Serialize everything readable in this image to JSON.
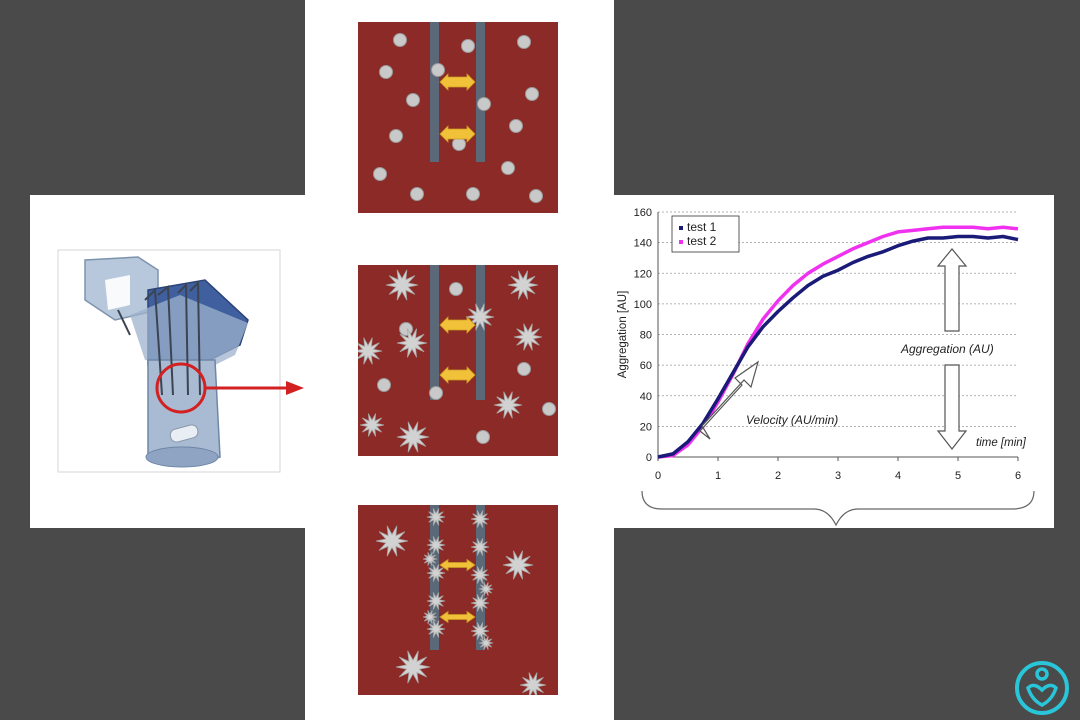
{
  "colors": {
    "background": "#4a4a4a",
    "panel": "#ffffff",
    "chamber": "#8b2a26",
    "electrode": "#5b6878",
    "arrow": "#f2c13a",
    "test1": "#1a1a78",
    "test2": "#f032f0",
    "logo": "#29c5d8"
  },
  "device": {
    "callout": "magnified-electrode-view",
    "icons": [
      "test-cuvette",
      "magnifier-ring",
      "pointer-arrow"
    ]
  },
  "stages": [
    "resting-platelets",
    "activated-platelets",
    "aggregated-on-electrodes"
  ],
  "chart_data": {
    "type": "line",
    "xlabel": "time [min]",
    "ylabel": "Aggregation [AU]",
    "xlim": [
      0,
      6
    ],
    "ylim": [
      0,
      160
    ],
    "xticks": [
      0,
      1,
      2,
      3,
      4,
      5,
      6
    ],
    "yticks": [
      0,
      20,
      40,
      60,
      80,
      100,
      120,
      140,
      160
    ],
    "grid": "horizontal dotted",
    "legend": "top-left",
    "series": [
      {
        "name": "test 1",
        "color": "#1a1a78",
        "x": [
          0,
          0.25,
          0.5,
          0.75,
          1,
          1.25,
          1.5,
          1.75,
          2,
          2.25,
          2.5,
          2.75,
          3,
          3.25,
          3.5,
          3.75,
          4,
          4.25,
          4.5,
          4.75,
          5,
          5.25,
          5.5,
          5.75,
          6
        ],
        "y": [
          0,
          2,
          10,
          22,
          38,
          55,
          72,
          85,
          95,
          104,
          112,
          118,
          122,
          127,
          131,
          134,
          138,
          141,
          143,
          143,
          144,
          144,
          143,
          144,
          142
        ]
      },
      {
        "name": "test 2",
        "color": "#f032f0",
        "x": [
          0,
          0.25,
          0.5,
          0.75,
          1,
          1.25,
          1.5,
          1.75,
          2,
          2.25,
          2.5,
          2.75,
          3,
          3.25,
          3.5,
          3.75,
          4,
          4.25,
          4.5,
          4.75,
          5,
          5.25,
          5.5,
          5.75,
          6
        ],
        "y": [
          0,
          1,
          8,
          20,
          36,
          54,
          74,
          90,
          102,
          112,
          120,
          126,
          131,
          136,
          140,
          144,
          147,
          148,
          149,
          150,
          150,
          150,
          149,
          150,
          149
        ]
      }
    ],
    "annotations": [
      "Velocity  (AU/min)",
      "Aggregation  (AU)"
    ]
  }
}
